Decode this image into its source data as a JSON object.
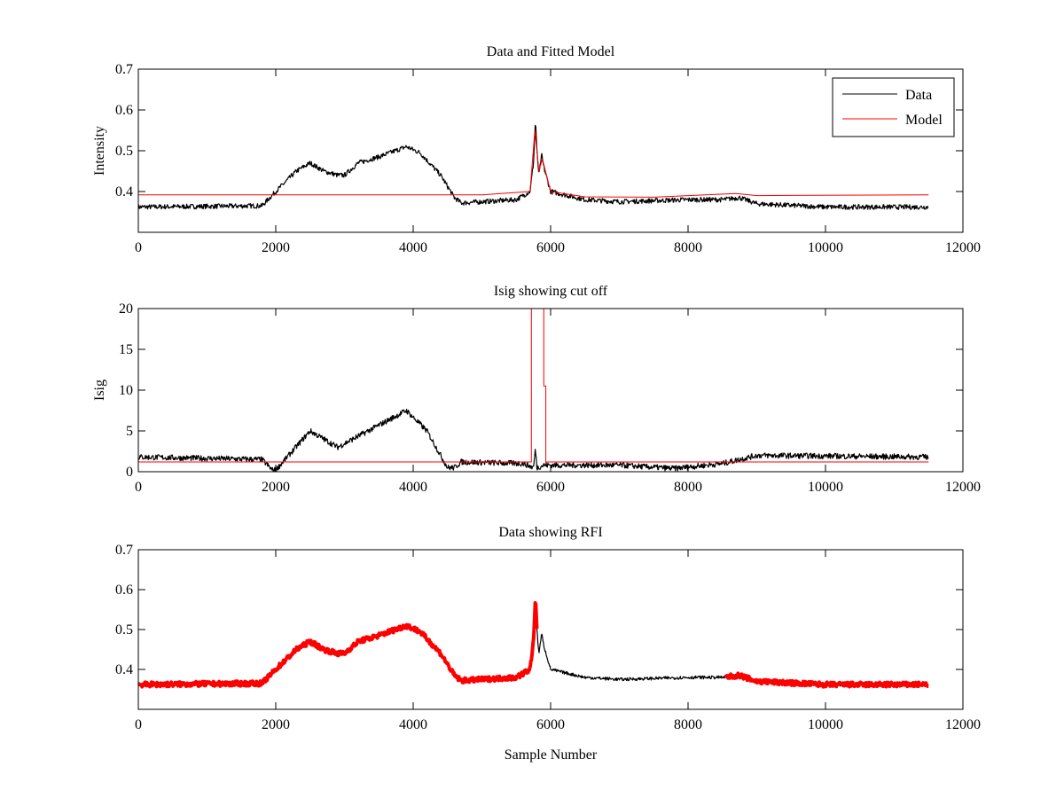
{
  "chart_data": [
    {
      "type": "line",
      "title": "Data and Fitted Model",
      "xlabel": "",
      "ylabel": "Intensity",
      "xlim": [
        0,
        12000
      ],
      "ylim": [
        0.3,
        0.7
      ],
      "xticks": [
        0,
        2000,
        4000,
        6000,
        8000,
        10000,
        12000
      ],
      "yticks": [
        0.4,
        0.5,
        0.6,
        0.7
      ],
      "legend": {
        "placement": "top-right",
        "entries": [
          "Data",
          "Model"
        ]
      },
      "series": [
        {
          "name": "Data",
          "color": "#000000",
          "noise": 0.006,
          "x": [
            0,
            1800,
            2000,
            2300,
            2500,
            2700,
            2900,
            3000,
            3200,
            3500,
            3900,
            4100,
            4400,
            4600,
            4700,
            5000,
            5500,
            5700,
            5750,
            5780,
            5800,
            5830,
            5870,
            5900,
            6000,
            6500,
            7000,
            8000,
            8500,
            8750,
            9000,
            10000,
            11500
          ],
          "y": [
            0.362,
            0.365,
            0.4,
            0.45,
            0.47,
            0.45,
            0.44,
            0.44,
            0.47,
            0.485,
            0.51,
            0.495,
            0.44,
            0.385,
            0.372,
            0.375,
            0.38,
            0.4,
            0.47,
            0.575,
            0.5,
            0.44,
            0.49,
            0.46,
            0.4,
            0.38,
            0.375,
            0.38,
            0.38,
            0.385,
            0.37,
            0.362,
            0.362
          ]
        },
        {
          "name": "Model",
          "color": "#ff0000",
          "noise": 0,
          "x": [
            0,
            5000,
            5700,
            5770,
            5830,
            5880,
            6000,
            6500,
            7500,
            8700,
            9000,
            11500
          ],
          "y": [
            0.392,
            0.392,
            0.4,
            0.55,
            0.45,
            0.48,
            0.4,
            0.387,
            0.386,
            0.395,
            0.39,
            0.392
          ]
        }
      ]
    },
    {
      "type": "line",
      "title": "Isig showing cut off",
      "xlabel": "",
      "ylabel": "Isig",
      "xlim": [
        0,
        12000
      ],
      "ylim": [
        0,
        20
      ],
      "xticks": [
        0,
        2000,
        4000,
        6000,
        8000,
        10000,
        12000
      ],
      "yticks": [
        0,
        5,
        10,
        15,
        20
      ],
      "series": [
        {
          "name": "Isig",
          "color": "#000000",
          "noise": 0.35,
          "x": [
            0,
            1800,
            1950,
            2000,
            2500,
            2900,
            3300,
            3900,
            4200,
            4500,
            4600,
            4700,
            5600,
            5750,
            5780,
            5800,
            5900,
            7000,
            7800,
            8500,
            9000,
            11500
          ],
          "y": [
            1.8,
            1.5,
            0.2,
            0.2,
            5,
            3,
            4.8,
            7.5,
            5,
            0.5,
            0.5,
            1.2,
            1.0,
            0.5,
            2.8,
            0.5,
            0.8,
            0.8,
            0.4,
            1.0,
            2.0,
            1.8
          ]
        },
        {
          "name": "Cut off",
          "color": "#ff0000",
          "noise": 0,
          "x": [
            0,
            5720,
            5720,
            5900,
            5900,
            5930,
            5930,
            11500
          ],
          "y": [
            1.2,
            1.2,
            21,
            21,
            10.5,
            10.5,
            1.2,
            1.2
          ]
        }
      ]
    },
    {
      "type": "line",
      "title": "Data showing RFI",
      "xlabel": "Sample Number",
      "ylabel": "",
      "xlim": [
        0,
        12000
      ],
      "ylim": [
        0.3,
        0.7
      ],
      "xticks": [
        0,
        2000,
        4000,
        6000,
        8000,
        10000,
        12000
      ],
      "yticks": [
        0.4,
        0.5,
        0.6,
        0.7
      ],
      "series": [
        {
          "name": "Data",
          "color": "#000000",
          "noise": 0.004,
          "source": "Data"
        },
        {
          "name": "RFI",
          "color": "#ff0000",
          "noise": 0.006,
          "source": "Data",
          "ranges": [
            [
              0,
              5800
            ],
            [
              8550,
              11500
            ]
          ]
        }
      ]
    }
  ]
}
